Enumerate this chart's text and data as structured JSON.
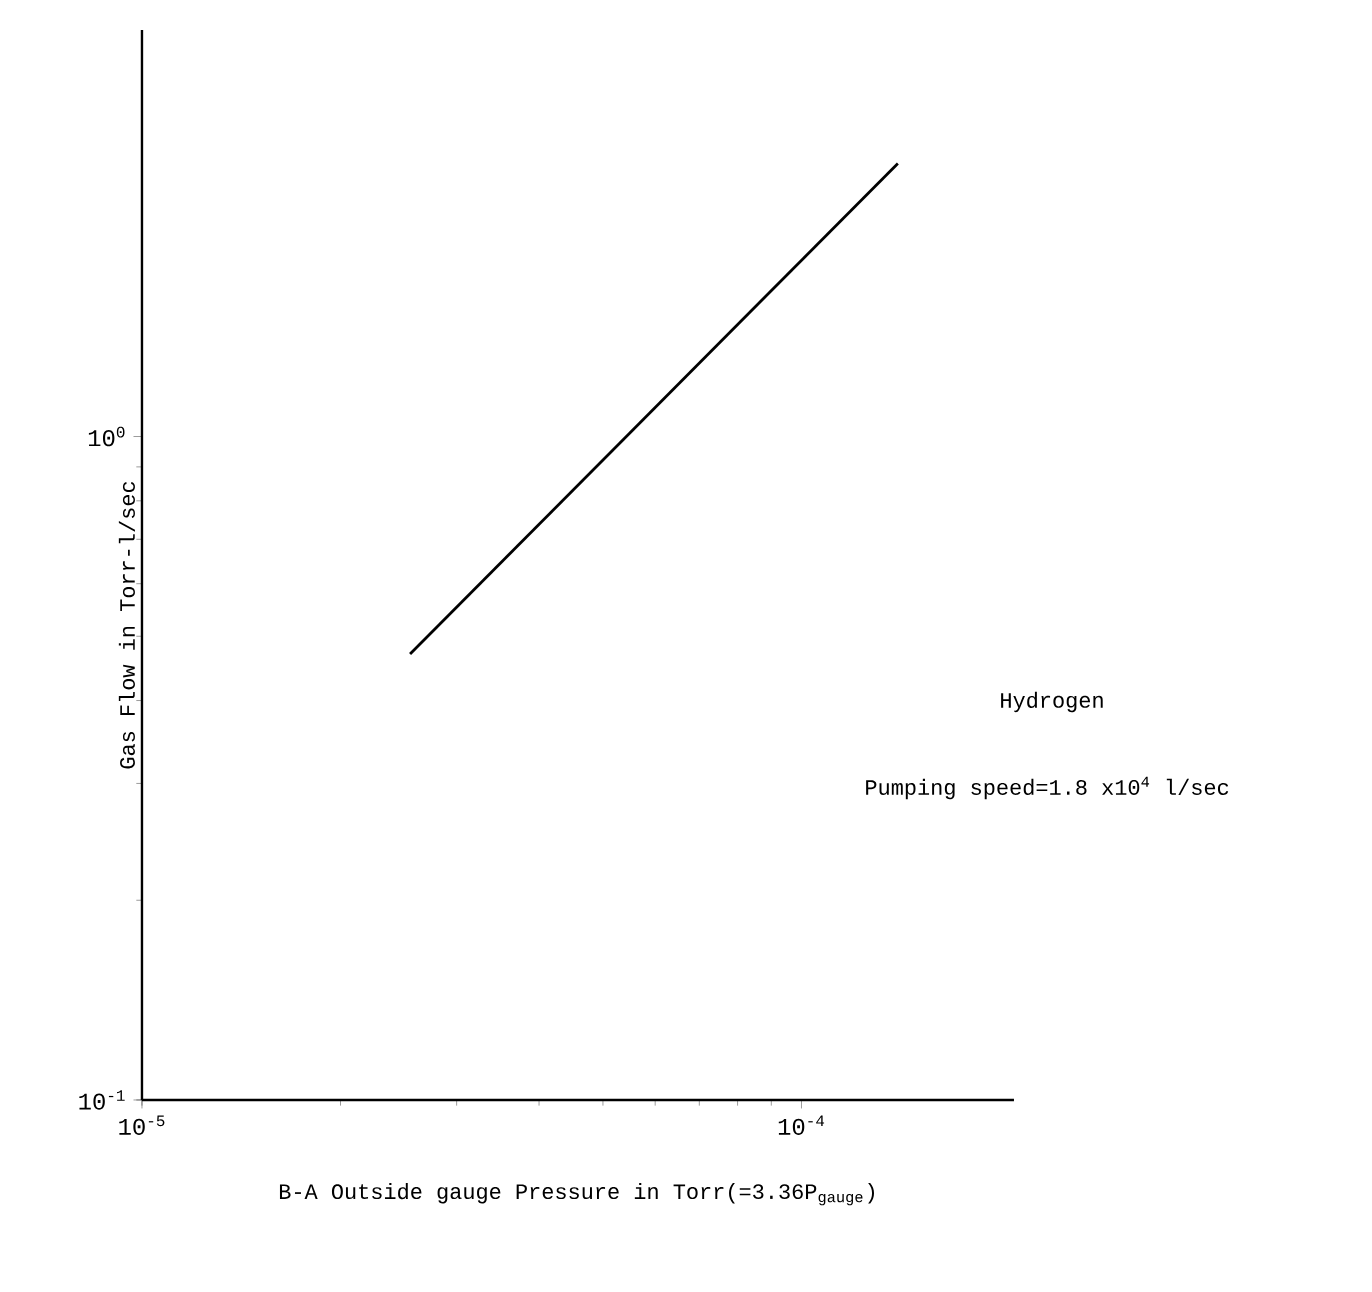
{
  "chart_data": {
    "type": "line",
    "xlabel": "B-A Outside gauge Pressure in Torr(=3.36P$_{gauge}$)",
    "ylabel": "Gas Flow in Torr-l/sec",
    "annotations": [
      "Hydrogen",
      "Pumping speed=1.8 x10$^{4}$ l/sec"
    ],
    "log": "xy",
    "xlim": [
      1e-05,
      0.00021
    ],
    "ylim": [
      0.1,
      4.1
    ],
    "xticks": [
      {
        "value": 1e-05,
        "label": "10$^{-5}$"
      },
      {
        "value": 0.0001,
        "label": "10$^{-4}$"
      }
    ],
    "yticks": [
      {
        "value": 0.1,
        "label": "10$^{-1}$"
      },
      {
        "value": 1,
        "label": "10$^{0}$"
      }
    ],
    "grid": false,
    "marker": "none",
    "line_style": "solid",
    "series": [
      {
        "color": "#000000",
        "x": [
          2.55e-05,
          0.00014
        ],
        "values": [
          0.47,
          2.58
        ]
      }
    ]
  }
}
